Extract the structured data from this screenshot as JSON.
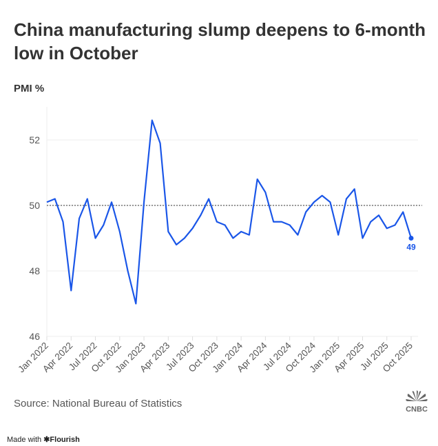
{
  "title": "China manufacturing slump deepens to 6-month low in October",
  "source": "Source: National Bureau of Statistics",
  "footer": {
    "made_with": "Made with",
    "brand": "Flourish"
  },
  "logo_text": "CNBC",
  "colors": {
    "line": "#1a56e8",
    "reference": "#777777",
    "grid": "#eeeeee",
    "text": "#333333"
  },
  "chart_data": {
    "type": "line",
    "title": "China manufacturing slump deepens to 6-month low in October",
    "ylabel": "PMI %",
    "xlabel": "",
    "ylim": [
      46,
      53
    ],
    "yticks": [
      46,
      48,
      50,
      52
    ],
    "reference_line": 50,
    "xtick_labels": [
      "Jan 2022",
      "Apr 2022",
      "Jul 2022",
      "Oct 2022",
      "Jan 2023",
      "Apr 2023",
      "Jul 2023",
      "Oct 2023",
      "Jan 2024",
      "Apr 2024",
      "Jul 2024",
      "Oct 2024",
      "Jan 2025",
      "Apr 2025",
      "Jul 2025",
      "Oct 2025"
    ],
    "start_month": "Jan 2022",
    "series": [
      {
        "name": "PMI",
        "values": [
          50.1,
          50.2,
          49.5,
          47.4,
          49.6,
          50.2,
          49.0,
          49.4,
          50.1,
          49.2,
          48.0,
          47.0,
          50.1,
          52.6,
          51.9,
          49.2,
          48.8,
          49.0,
          49.3,
          49.7,
          50.2,
          49.5,
          49.4,
          49.0,
          49.2,
          49.1,
          50.8,
          50.4,
          49.5,
          49.5,
          49.4,
          49.1,
          49.8,
          50.1,
          50.3,
          50.1,
          49.1,
          50.2,
          50.5,
          49.0,
          49.5,
          49.7,
          49.3,
          49.4,
          49.8,
          49.0
        ]
      }
    ],
    "annotation": {
      "label": "49",
      "month": "Oct 2025"
    }
  }
}
